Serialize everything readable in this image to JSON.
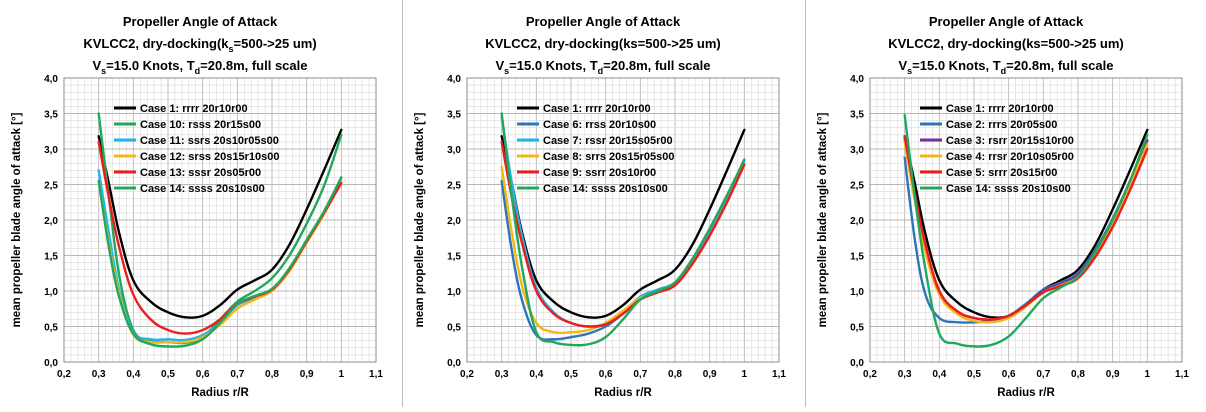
{
  "colors": {
    "black": "#000000",
    "green": "#22a85c",
    "blue": "#2e74b8",
    "lightblue": "#22b4e8",
    "orange": "#f2b81a",
    "red": "#ee1c1c",
    "purple": "#7030a0",
    "grid_minor": "#d9d9d9",
    "grid_major": "#b8b8b8"
  },
  "chart_data": [
    {
      "type": "line",
      "title_lines": [
        "Propeller Angle of Attack",
        "KVLCC2, dry-docking(k",
        "s",
        "=500->25 um)",
        "V",
        "s",
        "=15.0 Knots, T",
        "d",
        "=20.8m, full scale"
      ],
      "title": "Propeller Angle of Attack",
      "subtitle": "KVLCC2, dry-docking(ks=500->25 um)",
      "subtitle2": "Vs=15.0 Knots, Td=20.8m, full scale",
      "xlabel": "Radius r/R",
      "ylabel": "mean propeller blade angle of attack [°]",
      "xlim": [
        0.2,
        1.1
      ],
      "ylim": [
        0.0,
        4.0
      ],
      "xticks": [
        "0,2",
        "0,3",
        "0,4",
        "0,5",
        "0,6",
        "0,7",
        "0,8",
        "0,9",
        "1",
        "1,1"
      ],
      "yticks": [
        "0,0",
        "0,5",
        "1,0",
        "1,5",
        "2,0",
        "2,5",
        "3,0",
        "3,5",
        "4,0"
      ],
      "grid": true,
      "legend_position": "top-left",
      "series": [
        {
          "name": "Case 1: rrrr 20r10r00",
          "color": "#000000",
          "x": [
            0.3,
            0.33,
            0.36,
            0.4,
            0.45,
            0.5,
            0.55,
            0.6,
            0.65,
            0.7,
            0.75,
            0.8,
            0.85,
            0.9,
            0.95,
            1.0
          ],
          "y": [
            3.18,
            2.5,
            1.8,
            1.15,
            0.85,
            0.7,
            0.63,
            0.65,
            0.8,
            1.02,
            1.15,
            1.3,
            1.65,
            2.15,
            2.7,
            3.27
          ]
        },
        {
          "name": "Case 10: rsss 20r15s00",
          "color": "#22a85c",
          "x": [
            0.3,
            0.33,
            0.36,
            0.4,
            0.45,
            0.5,
            0.55,
            0.6,
            0.65,
            0.7,
            0.75,
            0.8,
            0.85,
            0.9,
            0.95,
            1.0
          ],
          "y": [
            3.5,
            2.3,
            1.2,
            0.45,
            0.3,
            0.28,
            0.27,
            0.35,
            0.6,
            0.85,
            1.0,
            1.18,
            1.5,
            1.95,
            2.48,
            3.2
          ]
        },
        {
          "name": "Case 11: ssrs 20s10r05s00",
          "color": "#22b4e8",
          "x": [
            0.3,
            0.33,
            0.36,
            0.4,
            0.45,
            0.5,
            0.55,
            0.6,
            0.65,
            0.7,
            0.75,
            0.8,
            0.85,
            0.9,
            0.95,
            1.0
          ],
          "y": [
            2.7,
            1.8,
            1.0,
            0.42,
            0.32,
            0.32,
            0.31,
            0.38,
            0.55,
            0.8,
            0.9,
            1.02,
            1.3,
            1.7,
            2.12,
            2.6
          ]
        },
        {
          "name": "Case 12: srss 20s15r10s00",
          "color": "#f2b81a",
          "x": [
            0.3,
            0.33,
            0.36,
            0.4,
            0.45,
            0.5,
            0.55,
            0.6,
            0.65,
            0.7,
            0.75,
            0.8,
            0.85,
            0.9,
            0.95,
            1.0
          ],
          "y": [
            2.55,
            1.65,
            0.95,
            0.38,
            0.28,
            0.28,
            0.28,
            0.35,
            0.52,
            0.75,
            0.88,
            1.0,
            1.28,
            1.68,
            2.08,
            2.55
          ]
        },
        {
          "name": "Case 13: sssr 20s05r00",
          "color": "#ee1c1c",
          "x": [
            0.3,
            0.33,
            0.36,
            0.4,
            0.45,
            0.5,
            0.55,
            0.6,
            0.65,
            0.7,
            0.75,
            0.8,
            0.85,
            0.9,
            0.95,
            1.0
          ],
          "y": [
            3.1,
            2.3,
            1.6,
            0.95,
            0.6,
            0.45,
            0.4,
            0.45,
            0.6,
            0.82,
            0.92,
            1.02,
            1.3,
            1.7,
            2.1,
            2.52
          ]
        },
        {
          "name": "Case 14: ssss 20s10s00",
          "color": "#22a85c",
          "x": [
            0.3,
            0.33,
            0.36,
            0.4,
            0.45,
            0.5,
            0.55,
            0.6,
            0.65,
            0.7,
            0.75,
            0.8,
            0.85,
            0.9,
            0.95,
            1.0
          ],
          "y": [
            2.55,
            1.6,
            0.9,
            0.4,
            0.25,
            0.22,
            0.23,
            0.32,
            0.55,
            0.82,
            0.93,
            1.03,
            1.32,
            1.72,
            2.12,
            2.6
          ]
        }
      ]
    },
    {
      "type": "line",
      "title_lines": [
        "Propeller Angle of Attack",
        "KVLCC2, dry-docking(ks=500->25 um)",
        "",
        "",
        "V",
        "s",
        "=15.0 Knots, T",
        "d",
        "=20.8m, full scale"
      ],
      "title": "Propeller Angle of Attack",
      "subtitle": "KVLCC2, dry-docking(ks=500->25 um)",
      "subtitle2": "Vs=15.0 Knots, Td=20.8m, full scale",
      "xlabel": "Radius r/R",
      "ylabel": "mean propeller blade angle of attack [°]",
      "xlim": [
        0.2,
        1.1
      ],
      "ylim": [
        0.0,
        4.0
      ],
      "xticks": [
        "0,2",
        "0,3",
        "0,4",
        "0,5",
        "0,6",
        "0,7",
        "0,8",
        "0,9",
        "1",
        "1,1"
      ],
      "yticks": [
        "0,0",
        "0,5",
        "1,0",
        "1,5",
        "2,0",
        "2,5",
        "3,0",
        "3,5",
        "4,0"
      ],
      "grid": true,
      "legend_position": "top-left",
      "series": [
        {
          "name": "Case 1: rrrr 20r10r00",
          "color": "#000000",
          "x": [
            0.3,
            0.33,
            0.36,
            0.4,
            0.45,
            0.5,
            0.55,
            0.6,
            0.65,
            0.7,
            0.75,
            0.8,
            0.85,
            0.9,
            0.95,
            1.0
          ],
          "y": [
            3.18,
            2.5,
            1.8,
            1.15,
            0.85,
            0.7,
            0.63,
            0.65,
            0.8,
            1.02,
            1.15,
            1.3,
            1.65,
            2.15,
            2.7,
            3.27
          ]
        },
        {
          "name": "Case 6: rrss 20r10s00",
          "color": "#2e74b8",
          "x": [
            0.3,
            0.33,
            0.36,
            0.4,
            0.45,
            0.5,
            0.55,
            0.6,
            0.65,
            0.7,
            0.75,
            0.8,
            0.85,
            0.9,
            0.95,
            1.0
          ],
          "y": [
            2.55,
            1.55,
            0.85,
            0.38,
            0.32,
            0.35,
            0.4,
            0.5,
            0.68,
            0.88,
            1.0,
            1.12,
            1.45,
            1.85,
            2.32,
            2.85
          ]
        },
        {
          "name": "Case 7: rssr 20r15s05r00",
          "color": "#22b4e8",
          "x": [
            0.3,
            0.33,
            0.36,
            0.4,
            0.45,
            0.5,
            0.55,
            0.6,
            0.65,
            0.7,
            0.75,
            0.8,
            0.85,
            0.9,
            0.95,
            1.0
          ],
          "y": [
            3.45,
            2.5,
            1.75,
            1.05,
            0.7,
            0.55,
            0.5,
            0.54,
            0.7,
            0.92,
            1.02,
            1.12,
            1.42,
            1.82,
            2.3,
            2.83
          ]
        },
        {
          "name": "Case 8: srrs 20s15r05s00",
          "color": "#f2b81a",
          "x": [
            0.3,
            0.33,
            0.36,
            0.4,
            0.45,
            0.5,
            0.55,
            0.6,
            0.65,
            0.7,
            0.75,
            0.8,
            0.85,
            0.9,
            0.95,
            1.0
          ],
          "y": [
            2.75,
            1.8,
            1.05,
            0.55,
            0.42,
            0.42,
            0.45,
            0.55,
            0.72,
            0.9,
            0.98,
            1.08,
            1.38,
            1.78,
            2.25,
            2.78
          ]
        },
        {
          "name": "Case 9: ssrr 20s10r00",
          "color": "#ee1c1c",
          "x": [
            0.3,
            0.33,
            0.36,
            0.4,
            0.45,
            0.5,
            0.55,
            0.6,
            0.65,
            0.7,
            0.75,
            0.8,
            0.85,
            0.9,
            0.95,
            1.0
          ],
          "y": [
            3.1,
            2.3,
            1.65,
            1.0,
            0.68,
            0.55,
            0.5,
            0.53,
            0.68,
            0.88,
            0.98,
            1.08,
            1.38,
            1.78,
            2.25,
            2.78
          ]
        },
        {
          "name": "Case 14: ssss 20s10s00",
          "color": "#22a85c",
          "x": [
            0.3,
            0.33,
            0.36,
            0.4,
            0.45,
            0.5,
            0.55,
            0.6,
            0.65,
            0.7,
            0.75,
            0.8,
            0.85,
            0.9,
            0.95,
            1.0
          ],
          "y": [
            3.5,
            2.3,
            1.3,
            0.42,
            0.28,
            0.24,
            0.25,
            0.35,
            0.6,
            0.88,
            1.0,
            1.12,
            1.45,
            1.88,
            2.35,
            2.85
          ]
        }
      ]
    },
    {
      "type": "line",
      "title_lines": [
        "Propeller Angle of Attack",
        "KVLCC2, dry-docking(ks=500->25 um)",
        "",
        "",
        "V",
        "s",
        "=15.0 Knots, T",
        "d",
        "=20.8m, full scale"
      ],
      "title": "Propeller Angle of Attack",
      "subtitle": "KVLCC2, dry-docking(ks=500->25 um)",
      "subtitle2": "Vs=15.0 Knots, Td=20.8m, full scale",
      "xlabel": "Radius r/R",
      "ylabel": "mean propeller blade angle of attack [°]",
      "xlim": [
        0.2,
        1.1
      ],
      "ylim": [
        0.0,
        4.0
      ],
      "xticks": [
        "0,2",
        "0,3",
        "0,4",
        "0,5",
        "0,6",
        "0,7",
        "0,8",
        "0,9",
        "1",
        "1,1"
      ],
      "yticks": [
        "0,0",
        "0,5",
        "1,0",
        "1,5",
        "2,0",
        "2,5",
        "3,0",
        "3,5",
        "4,0"
      ],
      "grid": true,
      "legend_position": "top-left",
      "series": [
        {
          "name": "Case 1: rrrr 20r10r00",
          "color": "#000000",
          "x": [
            0.3,
            0.33,
            0.36,
            0.4,
            0.45,
            0.5,
            0.55,
            0.6,
            0.65,
            0.7,
            0.75,
            0.8,
            0.85,
            0.9,
            0.95,
            1.0
          ],
          "y": [
            3.18,
            2.5,
            1.8,
            1.15,
            0.85,
            0.7,
            0.63,
            0.65,
            0.8,
            1.02,
            1.15,
            1.3,
            1.65,
            2.15,
            2.7,
            3.27
          ]
        },
        {
          "name": "Case 2: rrrs 20r05s00",
          "color": "#2e74b8",
          "x": [
            0.3,
            0.33,
            0.36,
            0.4,
            0.45,
            0.5,
            0.55,
            0.6,
            0.65,
            0.7,
            0.75,
            0.8,
            0.85,
            0.9,
            0.95,
            1.0
          ],
          "y": [
            2.88,
            1.7,
            0.95,
            0.62,
            0.56,
            0.56,
            0.58,
            0.65,
            0.82,
            1.02,
            1.12,
            1.25,
            1.58,
            2.02,
            2.55,
            3.12
          ]
        },
        {
          "name": "Case 3: rsrr 20r15s10r00",
          "color": "#7030a0",
          "x": [
            0.3,
            0.33,
            0.36,
            0.4,
            0.45,
            0.5,
            0.55,
            0.6,
            0.65,
            0.7,
            0.75,
            0.8,
            0.85,
            0.9,
            0.95,
            1.0
          ],
          "y": [
            3.15,
            2.35,
            1.65,
            1.0,
            0.72,
            0.62,
            0.6,
            0.65,
            0.8,
            1.0,
            1.1,
            1.23,
            1.56,
            2.0,
            2.52,
            3.12
          ]
        },
        {
          "name": "Case 4: rrsr 20r10s05r00",
          "color": "#f2b81a",
          "x": [
            0.3,
            0.33,
            0.36,
            0.4,
            0.45,
            0.5,
            0.55,
            0.6,
            0.65,
            0.7,
            0.75,
            0.8,
            0.85,
            0.9,
            0.95,
            1.0
          ],
          "y": [
            3.1,
            2.25,
            1.55,
            0.95,
            0.68,
            0.58,
            0.56,
            0.62,
            0.78,
            0.98,
            1.08,
            1.2,
            1.52,
            1.96,
            2.48,
            3.07
          ]
        },
        {
          "name": "Case 5: srrr 20s15r00",
          "color": "#ee1c1c",
          "x": [
            0.3,
            0.33,
            0.36,
            0.4,
            0.45,
            0.5,
            0.55,
            0.6,
            0.65,
            0.7,
            0.75,
            0.8,
            0.85,
            0.9,
            0.95,
            1.0
          ],
          "y": [
            3.18,
            2.35,
            1.65,
            1.0,
            0.72,
            0.62,
            0.6,
            0.65,
            0.8,
            0.98,
            1.07,
            1.18,
            1.48,
            1.9,
            2.42,
            3.0
          ]
        },
        {
          "name": "Case 14: ssss 20s10s00",
          "color": "#22a85c",
          "x": [
            0.3,
            0.33,
            0.36,
            0.4,
            0.45,
            0.5,
            0.55,
            0.6,
            0.65,
            0.7,
            0.75,
            0.8,
            0.85,
            0.9,
            0.95,
            1.0
          ],
          "y": [
            3.48,
            2.3,
            1.3,
            0.4,
            0.26,
            0.22,
            0.24,
            0.36,
            0.62,
            0.9,
            1.05,
            1.2,
            1.55,
            2.0,
            2.55,
            3.2
          ]
        }
      ]
    }
  ]
}
